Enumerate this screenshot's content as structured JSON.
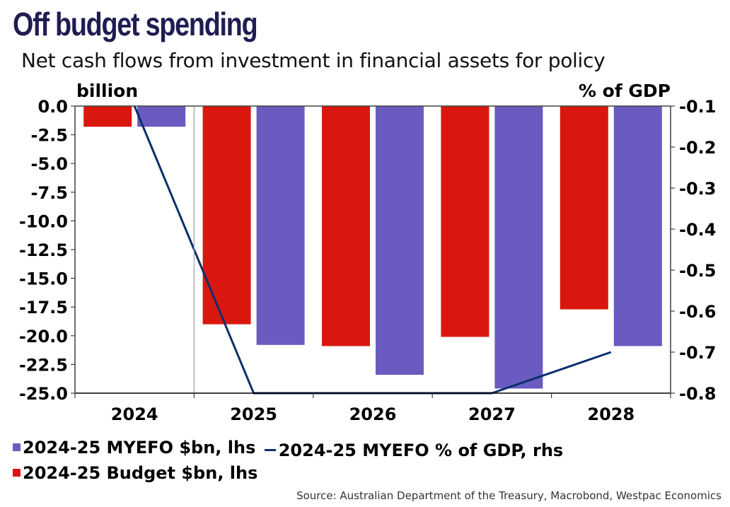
{
  "title": "Off budget spending",
  "subtitle": "Net cash flows from investment in financial assets for policy",
  "source": "Source: Australian Department of the Treasury, Macrobond, Westpac Economics",
  "colors": {
    "title": "#201d52",
    "budget": "#d9170f",
    "myefo": "#6a5bc1",
    "gdp_line": "#0a2f6b"
  },
  "chart_data": {
    "type": "bar",
    "title": "Off budget spending",
    "subtitle": "Net cash flows from investment in financial assets for policy",
    "categories": [
      "2024",
      "2025",
      "2026",
      "2027",
      "2028"
    ],
    "left_axis": {
      "label": "billion",
      "ylim": [
        -25.0,
        0.0
      ],
      "ticks": [
        "0.0",
        "-2.5",
        "-5.0",
        "-7.5",
        "-10.0",
        "-12.5",
        "-15.0",
        "-17.5",
        "-20.0",
        "-22.5",
        "-25.0"
      ]
    },
    "right_axis": {
      "label": "% of GDP",
      "ylim": [
        -0.8,
        -0.1
      ],
      "ticks": [
        "-0.1",
        "-0.2",
        "-0.3",
        "-0.4",
        "-0.5",
        "-0.6",
        "-0.7",
        "-0.8"
      ]
    },
    "series": [
      {
        "name": "2024-25 Budget $bn, lhs",
        "type": "bar",
        "axis": "left",
        "color": "#d9170f",
        "values": [
          -1.8,
          -19.0,
          -20.9,
          -20.1,
          -17.7
        ]
      },
      {
        "name": "2024-25 MYEFO $bn, lhs",
        "type": "bar",
        "axis": "left",
        "color": "#6a5bc1",
        "values": [
          -1.8,
          -20.8,
          -23.4,
          -24.6,
          -20.9
        ]
      },
      {
        "name": "2024-25 MYEFO % of GDP, rhs",
        "type": "line",
        "axis": "right",
        "color": "#0a2f6b",
        "values": [
          -0.1,
          -0.8,
          -0.8,
          -0.8,
          -0.7
        ]
      }
    ],
    "legend": {
      "position": "bottom-left",
      "entries": [
        {
          "label": "2024-25 MYEFO $bn, lhs",
          "kind": "bar",
          "color": "#6a5bc1"
        },
        {
          "label": "2024-25 MYEFO % of GDP, rhs",
          "kind": "line",
          "color": "#0a2f6b"
        },
        {
          "label": "2024-25 Budget $bn, lhs",
          "kind": "bar",
          "color": "#d9170f"
        }
      ]
    },
    "grid": false
  }
}
